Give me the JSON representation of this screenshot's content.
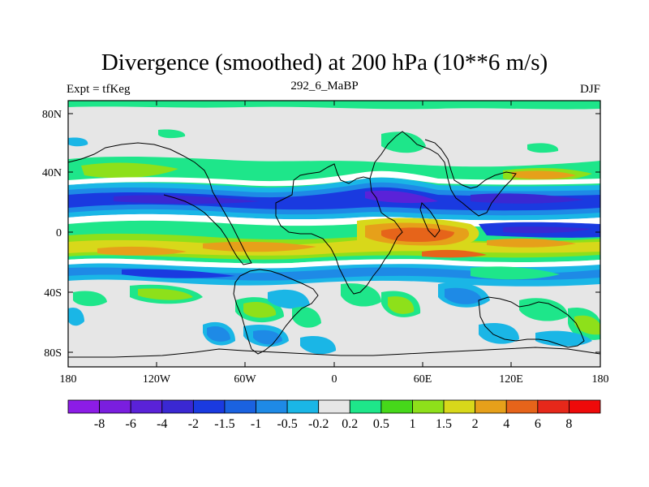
{
  "title": "Divergence (smoothed) at 200 hPa (10**6 m/s)",
  "left_subtitle": "Expt = tfKeg",
  "center_subtitle": "292_6_MaBP",
  "right_subtitle": "DJF",
  "lat_ticks": [
    "80N",
    "40N",
    "0",
    "40S",
    "80S"
  ],
  "lon_ticks": [
    "180",
    "120W",
    "60W",
    "0",
    "60E",
    "120E",
    "180"
  ],
  "colorbar": {
    "colors": [
      "#8c1ce6",
      "#7a1edf",
      "#5a22d8",
      "#3a28d2",
      "#1a3ae0",
      "#1a62e0",
      "#1e8ae6",
      "#1ab6e6",
      "#e6e6e6",
      "#1ee68a",
      "#46d81a",
      "#8ee01a",
      "#d8d81a",
      "#e6a01a",
      "#e6641a",
      "#e6281a",
      "#ee0a0a"
    ],
    "labels": [
      "-8",
      "-6",
      "-4",
      "-2",
      "-1.5",
      "-1",
      "-0.5",
      "-0.2",
      "0.2",
      "0.5",
      "1",
      "1.5",
      "2",
      "4",
      "6",
      "8"
    ]
  },
  "map_field": {
    "description_colors": {
      "neutral": "#e6e6e6",
      "strong_conv": "#1a3ae0",
      "mid_conv": "#1e8ae6",
      "light_conv": "#1ab6e6",
      "light_div": "#1ee68a",
      "mid_div": "#8ee01a",
      "strong_div": "#e6a01a",
      "peak_div": "#e6641a",
      "deep_conv": "#5a22d8",
      "white": "#ffffff"
    }
  }
}
